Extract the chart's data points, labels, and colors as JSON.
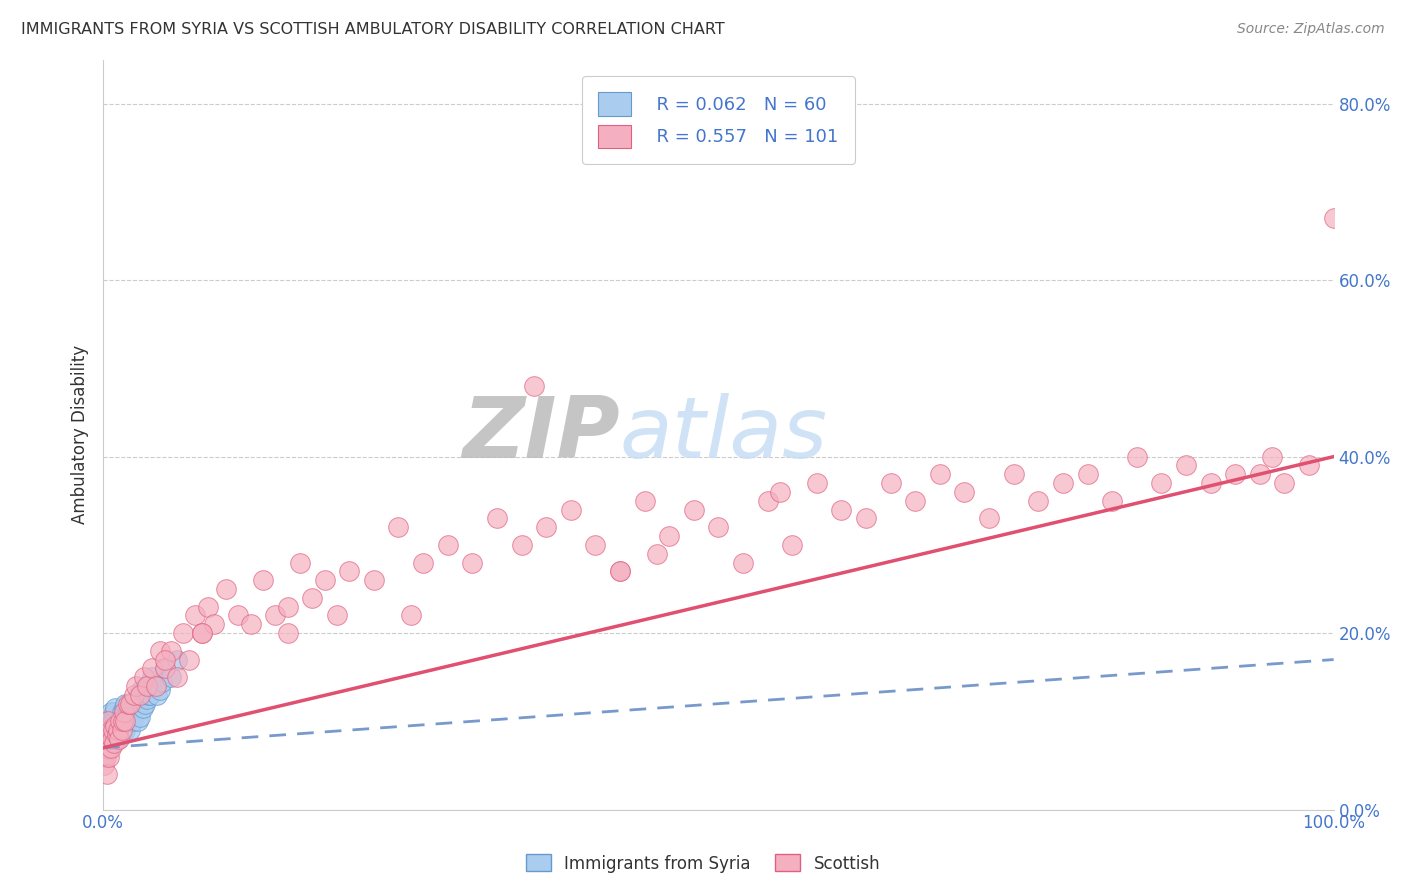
{
  "title": "IMMIGRANTS FROM SYRIA VS SCOTTISH AMBULATORY DISABILITY CORRELATION CHART",
  "source": "Source: ZipAtlas.com",
  "ylabel": "Ambulatory Disability",
  "xlabel_center": "Immigrants from Syria",
  "legend_blue_r": "0.062",
  "legend_blue_n": "60",
  "legend_pink_r": "0.557",
  "legend_pink_n": "101",
  "blue_fill": "#aaccee",
  "blue_edge": "#6699cc",
  "pink_fill": "#f4b0c0",
  "pink_edge": "#e06080",
  "pink_line_color": "#e05070",
  "blue_line_color": "#7799cc",
  "axis_color": "#cccccc",
  "grid_color": "#cccccc",
  "text_blue": "#4477cc",
  "text_dark": "#333333",
  "source_color": "#888888",
  "watermark_zip_color": "#bbbbbb",
  "watermark_atlas_color": "#c8ddf5",
  "xlim": [
    0.0,
    1.0
  ],
  "ylim": [
    0.0,
    0.85
  ],
  "yticks": [
    0.0,
    0.2,
    0.4,
    0.6,
    0.8
  ],
  "ytick_labels": [
    "0.0%",
    "20.0%",
    "40.0%",
    "60.0%",
    "80.0%"
  ],
  "blue_scatter_x": [
    0.0,
    0.001,
    0.002,
    0.002,
    0.003,
    0.003,
    0.004,
    0.004,
    0.005,
    0.005,
    0.006,
    0.006,
    0.007,
    0.007,
    0.008,
    0.008,
    0.009,
    0.009,
    0.01,
    0.01,
    0.011,
    0.012,
    0.012,
    0.013,
    0.014,
    0.015,
    0.015,
    0.016,
    0.017,
    0.018,
    0.018,
    0.019,
    0.02,
    0.021,
    0.022,
    0.023,
    0.024,
    0.025,
    0.026,
    0.027,
    0.028,
    0.029,
    0.03,
    0.031,
    0.032,
    0.033,
    0.034,
    0.035,
    0.036,
    0.037,
    0.038,
    0.039,
    0.04,
    0.042,
    0.044,
    0.046,
    0.048,
    0.05,
    0.055,
    0.06
  ],
  "blue_scatter_y": [
    0.06,
    0.07,
    0.08,
    0.09,
    0.065,
    0.1,
    0.075,
    0.09,
    0.08,
    0.1,
    0.085,
    0.11,
    0.075,
    0.09,
    0.08,
    0.1,
    0.085,
    0.11,
    0.09,
    0.115,
    0.09,
    0.08,
    0.1,
    0.09,
    0.095,
    0.085,
    0.11,
    0.1,
    0.115,
    0.09,
    0.12,
    0.1,
    0.11,
    0.115,
    0.09,
    0.12,
    0.1,
    0.115,
    0.11,
    0.125,
    0.1,
    0.13,
    0.105,
    0.135,
    0.115,
    0.13,
    0.12,
    0.14,
    0.125,
    0.13,
    0.13,
    0.14,
    0.15,
    0.14,
    0.13,
    0.135,
    0.145,
    0.16,
    0.15,
    0.17
  ],
  "pink_scatter_x": [
    0.001,
    0.002,
    0.003,
    0.003,
    0.004,
    0.004,
    0.005,
    0.005,
    0.006,
    0.006,
    0.007,
    0.008,
    0.009,
    0.01,
    0.011,
    0.012,
    0.013,
    0.014,
    0.015,
    0.016,
    0.017,
    0.018,
    0.02,
    0.022,
    0.025,
    0.027,
    0.03,
    0.033,
    0.036,
    0.04,
    0.043,
    0.046,
    0.05,
    0.055,
    0.06,
    0.065,
    0.07,
    0.075,
    0.08,
    0.085,
    0.09,
    0.1,
    0.11,
    0.12,
    0.13,
    0.14,
    0.15,
    0.16,
    0.17,
    0.18,
    0.19,
    0.2,
    0.22,
    0.24,
    0.26,
    0.28,
    0.3,
    0.32,
    0.34,
    0.36,
    0.38,
    0.4,
    0.42,
    0.44,
    0.46,
    0.48,
    0.5,
    0.52,
    0.54,
    0.56,
    0.58,
    0.6,
    0.62,
    0.64,
    0.66,
    0.68,
    0.7,
    0.72,
    0.74,
    0.76,
    0.78,
    0.8,
    0.82,
    0.84,
    0.86,
    0.88,
    0.9,
    0.92,
    0.94,
    0.96,
    0.98,
    1.0,
    0.35,
    0.45,
    0.55,
    0.15,
    0.25,
    0.05,
    0.08,
    0.42,
    0.95
  ],
  "pink_scatter_y": [
    0.05,
    0.06,
    0.04,
    0.09,
    0.07,
    0.1,
    0.06,
    0.08,
    0.07,
    0.09,
    0.08,
    0.09,
    0.075,
    0.095,
    0.085,
    0.09,
    0.08,
    0.1,
    0.09,
    0.1,
    0.11,
    0.1,
    0.12,
    0.12,
    0.13,
    0.14,
    0.13,
    0.15,
    0.14,
    0.16,
    0.14,
    0.18,
    0.16,
    0.18,
    0.15,
    0.2,
    0.17,
    0.22,
    0.2,
    0.23,
    0.21,
    0.25,
    0.22,
    0.21,
    0.26,
    0.22,
    0.23,
    0.28,
    0.24,
    0.26,
    0.22,
    0.27,
    0.26,
    0.32,
    0.28,
    0.3,
    0.28,
    0.33,
    0.3,
    0.32,
    0.34,
    0.3,
    0.27,
    0.35,
    0.31,
    0.34,
    0.32,
    0.28,
    0.35,
    0.3,
    0.37,
    0.34,
    0.33,
    0.37,
    0.35,
    0.38,
    0.36,
    0.33,
    0.38,
    0.35,
    0.37,
    0.38,
    0.35,
    0.4,
    0.37,
    0.39,
    0.37,
    0.38,
    0.38,
    0.37,
    0.39,
    0.67,
    0.48,
    0.29,
    0.36,
    0.2,
    0.22,
    0.17,
    0.2,
    0.27,
    0.4
  ]
}
